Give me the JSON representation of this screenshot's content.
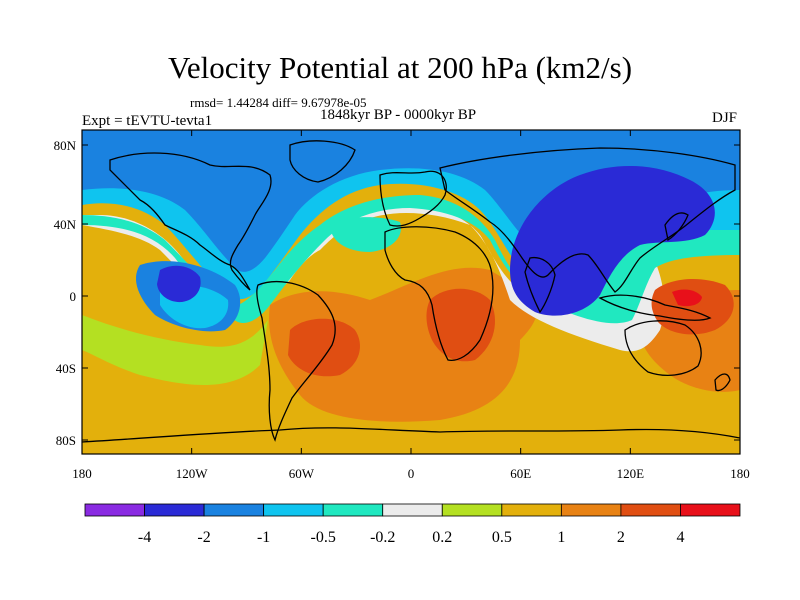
{
  "title": "Velocity Potential at 200 hPa (km2/s)",
  "stats": "rmsd= 1.44284 diff= 9.67978e-05",
  "period": "1848kyr BP - 0000kyr BP",
  "left_label": "Expt = tEVTU-tevta1",
  "right_label": "DJF",
  "lat_ticks": [
    "80N",
    "40N",
    "0",
    "40S",
    "80S"
  ],
  "lon_ticks": [
    "180",
    "120W",
    "60W",
    "0",
    "60E",
    "120E",
    "180"
  ],
  "colorbar": {
    "labels": [
      "-4",
      "-2",
      "-1",
      "-0.5",
      "-0.2",
      "0.2",
      "0.5",
      "1",
      "2",
      "4"
    ],
    "colors": [
      "#8a2be2",
      "#2a2ad6",
      "#1a82e0",
      "#0fc4ef",
      "#20e8c0",
      "#ececec",
      "#b4e022",
      "#e3b00c",
      "#e88214",
      "#e04e12",
      "#e8101a"
    ]
  },
  "colors": {
    "ocean_bg": "#e3b00c",
    "blue_band": "#1a82e0",
    "light_blue": "#0fc4ef",
    "aqua": "#20e8c0",
    "neutral": "#ececec",
    "lime": "#b4e022",
    "orange": "#e88214",
    "red_orange": "#e04e12",
    "red": "#e8101a",
    "dark_blue": "#2a2ad6"
  }
}
